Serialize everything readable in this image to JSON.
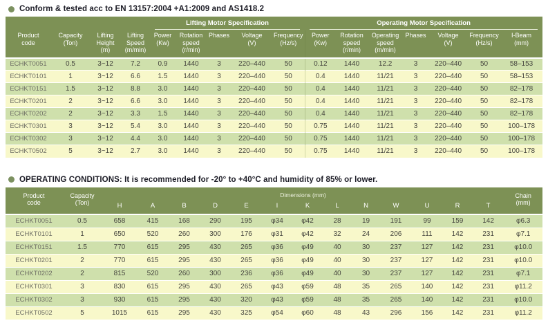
{
  "colors": {
    "header_bg": "#7d9155",
    "row_green": "#cfe0ac",
    "row_yellow": "#f8f8ca",
    "bullet_green": "#7c9160",
    "title_text": "#1c1c26",
    "body_text": "#45453e",
    "header_text": "#ffffff"
  },
  "section1": {
    "title": "Conform & tested acc to EN 13157:2004 +A1:2009 and AS1418.2",
    "table": {
      "groups": {
        "lifting": "Lifting Motor Specification",
        "operating": "Operating Motor Specification"
      },
      "columns": [
        "Product\ncode",
        "Capacity\n(Ton)",
        "Lifting\nHeight\n(m)",
        "Lifting\nSpeed\n(m/min)",
        "Power\n(Kw)",
        "Rotation\nspeed\n(r/min)",
        "Phases",
        "Voltage\n(V)",
        "Frequency\n(Hz/s)",
        "Power\n(Kw)",
        "Rotation\nspeed\n(r/min)",
        "Operating\nspeed\n(m/min)",
        "Phases",
        "Voltage\n(V)",
        "Frequency\n(Hz/s)",
        "I-Beam\n(mm)"
      ],
      "rows": [
        [
          "ECHKT0051",
          "0.5",
          "3~12",
          "7.2",
          "0.9",
          "1440",
          "3",
          "220–440",
          "50",
          "0.12",
          "1440",
          "12.2",
          "3",
          "220–440",
          "50",
          "58–153"
        ],
        [
          "ECHKT0101",
          "1",
          "3~12",
          "6.6",
          "1.5",
          "1440",
          "3",
          "220–440",
          "50",
          "0.4",
          "1440",
          "11/21",
          "3",
          "220–440",
          "50",
          "58–153"
        ],
        [
          "ECHKT0151",
          "1.5",
          "3~12",
          "8.8",
          "3.0",
          "1440",
          "3",
          "220–440",
          "50",
          "0.4",
          "1440",
          "11/21",
          "3",
          "220–440",
          "50",
          "82–178"
        ],
        [
          "ECHKT0201",
          "2",
          "3~12",
          "6.6",
          "3.0",
          "1440",
          "3",
          "220–440",
          "50",
          "0.4",
          "1440",
          "11/21",
          "3",
          "220–440",
          "50",
          "82–178"
        ],
        [
          "ECHKT0202",
          "2",
          "3~12",
          "3.3",
          "1.5",
          "1440",
          "3",
          "220–440",
          "50",
          "0.4",
          "1440",
          "11/21",
          "3",
          "220–440",
          "50",
          "82–178"
        ],
        [
          "ECHKT0301",
          "3",
          "3~12",
          "5.4",
          "3.0",
          "1440",
          "3",
          "220–440",
          "50",
          "0.75",
          "1440",
          "11/21",
          "3",
          "220–440",
          "50",
          "100–178"
        ],
        [
          "ECHKT0302",
          "3",
          "3~12",
          "4.4",
          "3.0",
          "1440",
          "3",
          "220–440",
          "50",
          "0.75",
          "1440",
          "11/21",
          "3",
          "220–440",
          "50",
          "100–178"
        ],
        [
          "ECHKT0502",
          "5",
          "3~12",
          "2.7",
          "3.0",
          "1440",
          "3",
          "220–440",
          "50",
          "0.75",
          "1440",
          "11/21",
          "3",
          "220–440",
          "50",
          "100–178"
        ]
      ]
    }
  },
  "section2": {
    "title": "OPERATING CONDITIONS: It is recommended for -20° to +40°C and humidity of 85% or lower.",
    "table": {
      "group": "Dimensions (mm)",
      "product_col": "Product\ncode",
      "capacity_col": "Capacity\n(Ton)",
      "chain_col": "Chain\n(mm)",
      "dim_columns": [
        "H",
        "A",
        "B",
        "D",
        "E",
        "I",
        "K",
        "L",
        "N",
        "W",
        "U",
        "R",
        "T"
      ],
      "rows": [
        [
          "ECHKT0051",
          "0.5",
          "658",
          "415",
          "168",
          "290",
          "195",
          "φ34",
          "φ42",
          "28",
          "19",
          "191",
          "99",
          "159",
          "142",
          "φ6.3"
        ],
        [
          "ECHKT0101",
          "1",
          "650",
          "520",
          "260",
          "300",
          "176",
          "φ31",
          "φ42",
          "32",
          "24",
          "206",
          "111",
          "142",
          "231",
          "φ7.1"
        ],
        [
          "ECHKT0151",
          "1.5",
          "770",
          "615",
          "295",
          "430",
          "265",
          "φ36",
          "φ49",
          "40",
          "30",
          "237",
          "127",
          "142",
          "231",
          "φ10.0"
        ],
        [
          "ECHKT0201",
          "2",
          "770",
          "615",
          "295",
          "430",
          "265",
          "φ36",
          "φ49",
          "40",
          "30",
          "237",
          "127",
          "142",
          "231",
          "φ10.0"
        ],
        [
          "ECHKT0202",
          "2",
          "815",
          "520",
          "260",
          "300",
          "236",
          "φ36",
          "φ49",
          "40",
          "30",
          "237",
          "127",
          "142",
          "231",
          "φ7.1"
        ],
        [
          "ECHKT0301",
          "3",
          "830",
          "615",
          "295",
          "430",
          "265",
          "φ43",
          "φ59",
          "48",
          "35",
          "265",
          "140",
          "142",
          "231",
          "φ11.2"
        ],
        [
          "ECHKT0302",
          "3",
          "930",
          "615",
          "295",
          "430",
          "320",
          "φ43",
          "φ59",
          "48",
          "35",
          "265",
          "140",
          "142",
          "231",
          "φ10.0"
        ],
        [
          "ECHKT0502",
          "5",
          "1015",
          "615",
          "295",
          "430",
          "325",
          "φ54",
          "φ60",
          "48",
          "43",
          "296",
          "156",
          "142",
          "231",
          "φ11.2"
        ]
      ]
    }
  }
}
